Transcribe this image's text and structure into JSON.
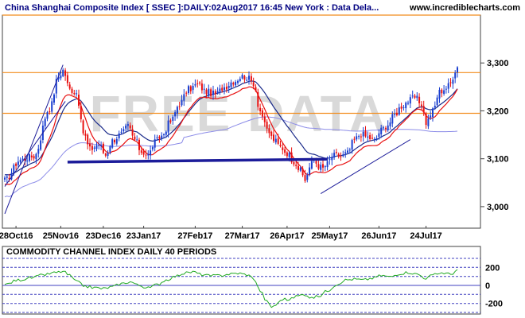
{
  "header": {
    "title": "China Shanghai Composite Index [ SSEC ]:DAILY:02Aug2017 16:45 New York : Data Dela...",
    "site": "www.incrediblecharts.com"
  },
  "watermark": "FREE DATA",
  "colors": {
    "background": "#ffffff",
    "price_panel_bg": "#ffffff",
    "up_candle": "#1a3fd0",
    "down_candle": "#e81010",
    "ma_fast": "#e81010",
    "ma_slow": "#1a2a8a",
    "ma_long": "#8c8ce8",
    "resistance": "#f28c1c",
    "support": "#1c1c9a",
    "channel": "#1c1c9a",
    "cci_line": "#22aa22",
    "cci_levels": "#4040c0",
    "panel_border": "#404040",
    "grid": "#c8c8c8"
  },
  "chart_data": [
    {
      "type": "candlestick",
      "title": "China Shanghai Composite Index [ SSEC ]:DAILY:02Aug2017 16:45 New York : Data Dela...",
      "ylim": [
        2960,
        3395
      ],
      "y_ticks": [
        3000,
        3100,
        3200,
        3300
      ],
      "y_tick_labels": [
        "3,000",
        "3,100",
        "3,200",
        "3,300"
      ],
      "x_tick_labels": [
        "28Oct16",
        "25Nov16",
        "23Dec16",
        "23Jan17",
        "27Feb17",
        "27Mar17",
        "26Apr17",
        "25May17",
        "26Jun17",
        "24Jul17"
      ],
      "x_tick_index": [
        5,
        25,
        44,
        62,
        85,
        106,
        126,
        145,
        167,
        188
      ],
      "num_bars": 203,
      "anchors": [
        [
          0,
          3055
        ],
        [
          7,
          3098
        ],
        [
          13,
          3105
        ],
        [
          20,
          3205
        ],
        [
          24,
          3272
        ],
        [
          26,
          3285
        ],
        [
          29,
          3245
        ],
        [
          32,
          3238
        ],
        [
          35,
          3155
        ],
        [
          38,
          3120
        ],
        [
          42,
          3130
        ],
        [
          45,
          3108
        ],
        [
          48,
          3138
        ],
        [
          52,
          3152
        ],
        [
          55,
          3168
        ],
        [
          58,
          3140
        ],
        [
          61,
          3115
        ],
        [
          64,
          3108
        ],
        [
          67,
          3135
        ],
        [
          70,
          3148
        ],
        [
          74,
          3178
        ],
        [
          78,
          3215
        ],
        [
          82,
          3245
        ],
        [
          86,
          3255
        ],
        [
          90,
          3240
        ],
        [
          94,
          3235
        ],
        [
          98,
          3250
        ],
        [
          102,
          3262
        ],
        [
          106,
          3272
        ],
        [
          108,
          3270
        ],
        [
          111,
          3258
        ],
        [
          114,
          3200
        ],
        [
          117,
          3160
        ],
        [
          120,
          3140
        ],
        [
          123,
          3125
        ],
        [
          126,
          3112
        ],
        [
          129,
          3095
        ],
        [
          132,
          3075
        ],
        [
          134,
          3055
        ],
        [
          136,
          3082
        ],
        [
          138,
          3098
        ],
        [
          140,
          3085
        ],
        [
          142,
          3080
        ],
        [
          144,
          3090
        ],
        [
          146,
          3105
        ],
        [
          148,
          3108
        ],
        [
          150,
          3105
        ],
        [
          153,
          3112
        ],
        [
          156,
          3140
        ],
        [
          159,
          3152
        ],
        [
          162,
          3145
        ],
        [
          165,
          3138
        ],
        [
          168,
          3160
        ],
        [
          171,
          3172
        ],
        [
          174,
          3192
        ],
        [
          177,
          3210
        ],
        [
          180,
          3220
        ],
        [
          183,
          3228
        ],
        [
          186,
          3215
        ],
        [
          188,
          3175
        ],
        [
          191,
          3200
        ],
        [
          194,
          3240
        ],
        [
          197,
          3248
        ],
        [
          199,
          3258
        ],
        [
          201,
          3285
        ],
        [
          202,
          3292
        ]
      ],
      "resistance_levels": [
        3280,
        3195
      ],
      "support_line": {
        "from": [
          28,
          3093
        ],
        "to": [
          144,
          3099
        ]
      },
      "channel_lines": [
        {
          "from": [
            0,
            2985
          ],
          "to": [
            26,
            3296
          ]
        },
        {
          "from": [
            0,
            3042
          ],
          "to": [
            27,
            3220
          ]
        },
        {
          "from": [
            141,
            3027
          ],
          "to": [
            181,
            3140
          ]
        }
      ]
    },
    {
      "type": "line",
      "title": "COMMODITY CHANNEL INDEX DAILY 40 PERIODS",
      "ylim": [
        -300,
        300
      ],
      "y_ticks": [
        200,
        0,
        -200
      ],
      "y_tick_labels": [
        "200",
        "0",
        "-200"
      ],
      "levels": [
        300,
        200,
        100,
        0,
        -100,
        -200,
        -300
      ],
      "anchors": [
        [
          0,
          10
        ],
        [
          6,
          60
        ],
        [
          12,
          85
        ],
        [
          18,
          120
        ],
        [
          22,
          140
        ],
        [
          26,
          155
        ],
        [
          29,
          110
        ],
        [
          32,
          40
        ],
        [
          36,
          -10
        ],
        [
          40,
          -25
        ],
        [
          44,
          -35
        ],
        [
          48,
          -15
        ],
        [
          52,
          20
        ],
        [
          56,
          40
        ],
        [
          60,
          0
        ],
        [
          64,
          -30
        ],
        [
          68,
          10
        ],
        [
          72,
          60
        ],
        [
          76,
          100
        ],
        [
          80,
          135
        ],
        [
          84,
          150
        ],
        [
          88,
          120
        ],
        [
          92,
          105
        ],
        [
          96,
          110
        ],
        [
          100,
          125
        ],
        [
          104,
          135
        ],
        [
          108,
          120
        ],
        [
          111,
          80
        ],
        [
          114,
          -60
        ],
        [
          117,
          -180
        ],
        [
          119,
          -240
        ],
        [
          121,
          -215
        ],
        [
          124,
          -150
        ],
        [
          127,
          -160
        ],
        [
          130,
          -120
        ],
        [
          134,
          -100
        ],
        [
          137,
          -140
        ],
        [
          140,
          -120
        ],
        [
          144,
          -60
        ],
        [
          148,
          10
        ],
        [
          152,
          60
        ],
        [
          156,
          70
        ],
        [
          160,
          60
        ],
        [
          164,
          80
        ],
        [
          168,
          110
        ],
        [
          172,
          95
        ],
        [
          176,
          130
        ],
        [
          180,
          145
        ],
        [
          184,
          125
        ],
        [
          188,
          80
        ],
        [
          191,
          115
        ],
        [
          195,
          140
        ],
        [
          199,
          125
        ],
        [
          202,
          170
        ]
      ]
    }
  ]
}
